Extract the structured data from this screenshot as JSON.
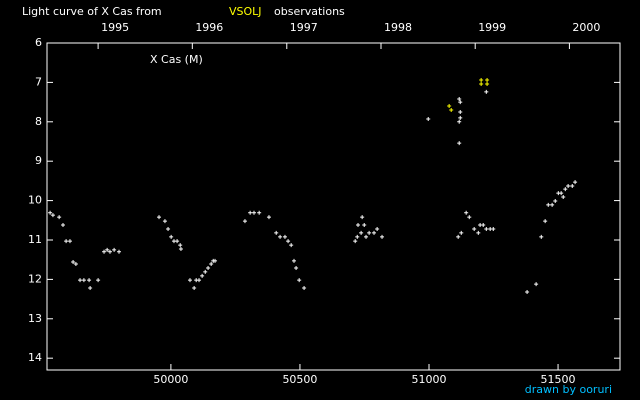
{
  "chart_data": {
    "type": "scatter",
    "title_parts": [
      "Light curve of X Cas from",
      "VSOLJ",
      "observations"
    ],
    "title_colors": [
      "#ffffff",
      "#ffff00",
      "#ffffff"
    ],
    "annotation": "X Cas (M)",
    "credit": "drawn by ooruri",
    "credit_color": "#00bfff",
    "background": "#000000",
    "axis_color": "#ffffff",
    "xlim": [
      49520,
      51740
    ],
    "ylim": [
      14.3,
      6
    ],
    "xticks": [
      50000,
      50500,
      51000,
      51500
    ],
    "yticks": [
      6,
      7,
      8,
      9,
      10,
      11,
      12,
      13,
      14
    ],
    "top_xticks": [
      {
        "value": 49718,
        "label": "1995"
      },
      {
        "value": 50083,
        "label": "1996"
      },
      {
        "value": 50449,
        "label": "1997"
      },
      {
        "value": 50814,
        "label": "1998"
      },
      {
        "value": 51179,
        "label": "1999"
      },
      {
        "value": 51544,
        "label": "2000"
      }
    ],
    "series": [
      {
        "color": "#ffffff",
        "x": [
          49532,
          49543,
          49567,
          49582,
          49594,
          49609,
          49621,
          49632,
          49648,
          49663,
          49683,
          49687,
          49718,
          49741,
          49753,
          49764,
          49780,
          49799,
          49954,
          49977,
          49989,
          50001,
          50012,
          50024,
          50036,
          50039,
          50074,
          50090,
          50098,
          50109,
          50121,
          50133,
          50144,
          50156,
          50164,
          50171,
          50287,
          50307,
          50322,
          50342,
          50380,
          50408,
          50423,
          50442,
          50454,
          50466,
          50477,
          50485,
          50497,
          50516,
          50714,
          50722,
          50725,
          50737,
          50741,
          50749,
          50756,
          50768,
          50787,
          50799,
          50818,
          50997,
          51117,
          51121,
          51121,
          51121,
          51117,
          51117,
          51125,
          51113,
          51144,
          51156,
          51175,
          51191,
          51198,
          51210,
          51222,
          51237,
          51249,
          51222,
          51380,
          51415,
          51435,
          51450,
          51462,
          51477,
          51489,
          51501,
          51512,
          51520,
          51528,
          51539,
          51555,
          51566
        ],
        "values": [
          10.31,
          10.37,
          10.42,
          10.62,
          11.03,
          11.03,
          11.56,
          11.61,
          12.02,
          12.02,
          12.02,
          12.22,
          12.02,
          11.3,
          11.25,
          11.3,
          11.25,
          11.3,
          10.42,
          10.52,
          10.72,
          10.92,
          11.03,
          11.03,
          11.13,
          11.23,
          12.02,
          12.22,
          12.02,
          12.02,
          11.91,
          11.81,
          11.71,
          11.61,
          11.53,
          11.53,
          10.52,
          10.31,
          10.31,
          10.31,
          10.42,
          10.82,
          10.92,
          10.92,
          11.03,
          11.13,
          11.53,
          11.71,
          12.02,
          12.22,
          11.03,
          10.92,
          10.62,
          10.82,
          10.42,
          10.62,
          10.92,
          10.82,
          10.82,
          10.72,
          10.92,
          7.93,
          7.42,
          7.5,
          7.75,
          7.9,
          8.0,
          8.54,
          10.82,
          10.92,
          10.31,
          10.42,
          10.72,
          10.82,
          10.62,
          10.62,
          10.72,
          10.72,
          10.72,
          7.24,
          12.32,
          12.12,
          10.92,
          10.52,
          10.11,
          10.11,
          10.01,
          9.81,
          9.81,
          9.91,
          9.71,
          9.63,
          9.63,
          9.53
        ]
      },
      {
        "color": "#ffff00",
        "x": [
          51078,
          51086,
          51202,
          51225,
          51202,
          51225
        ],
        "values": [
          7.6,
          7.7,
          6.94,
          6.94,
          7.04,
          7.04
        ]
      }
    ]
  }
}
